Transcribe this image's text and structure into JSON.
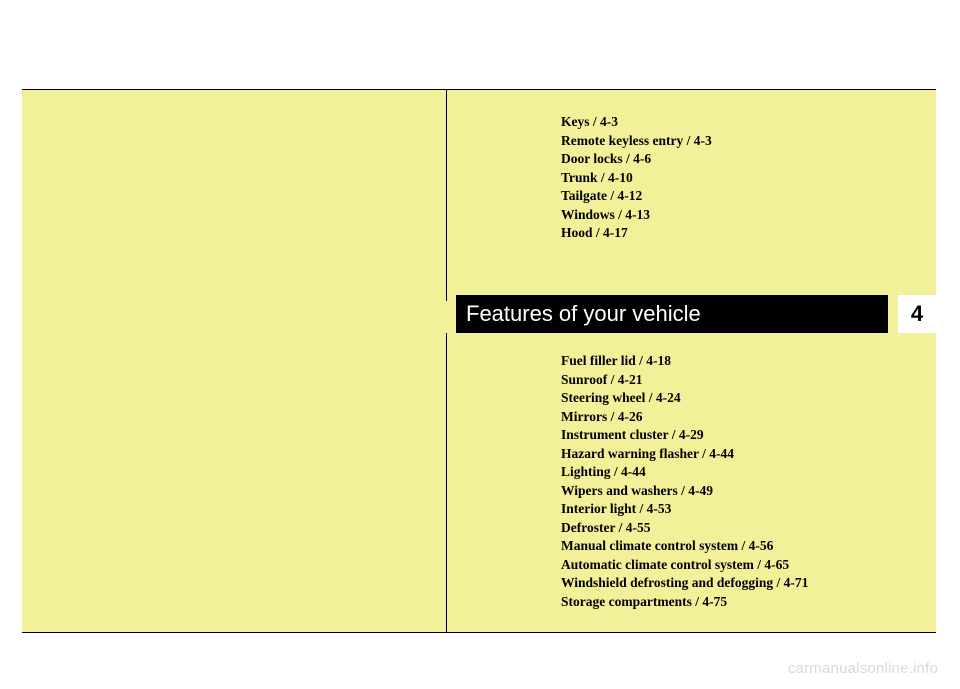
{
  "chapter": {
    "title": "Features of your vehicle",
    "number": "4"
  },
  "toc_upper": [
    "Keys / 4-3",
    "Remote keyless entry / 4-3",
    "Door locks / 4-6",
    "Trunk / 4-10",
    "Tailgate / 4-12",
    "Windows / 4-13",
    "Hood / 4-17"
  ],
  "toc_lower": [
    "Fuel filler lid / 4-18",
    "Sunroof / 4-21",
    "Steering wheel / 4-24",
    "Mirrors / 4-26",
    "Instrument cluster / 4-29",
    "Hazard warning flasher / 4-44",
    "Lighting / 4-44",
    "Wipers and washers / 4-49",
    "Interior light / 4-53",
    "Defroster / 4-55",
    "Manual climate control system / 4-56",
    "Automatic climate control system / 4-65",
    "Windshield defrosting and defogging / 4-71",
    "Storage compartments / 4-75"
  ],
  "watermark": "carmanualsonline.info",
  "colors": {
    "page_bg": "#ffffff",
    "yellow": "#f3f09a",
    "black": "#000000",
    "white": "#ffffff",
    "watermark": "#d9d9d9"
  }
}
